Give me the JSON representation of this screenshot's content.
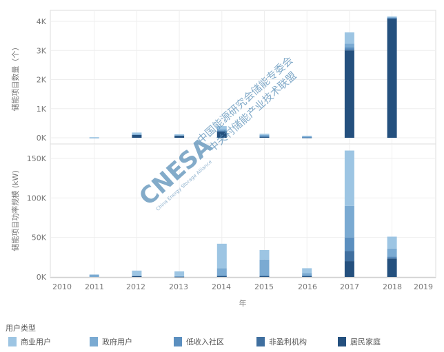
{
  "chart_data": [
    {
      "type": "bar",
      "stacked": true,
      "ylabel": "储能项目数量（个）",
      "ylim": [
        0,
        4300
      ],
      "yticks": [
        0,
        1000,
        2000,
        3000,
        4000
      ],
      "ytick_labels": [
        "0K",
        "1K",
        "2K",
        "3K",
        "4K"
      ],
      "categories": [
        "2010",
        "2011",
        "2012",
        "2013",
        "2014",
        "2015",
        "2016",
        "2017",
        "2018",
        "2019"
      ],
      "grid": true,
      "series": [
        {
          "name": "居民家庭",
          "values": [
            0,
            0,
            100,
            80,
            200,
            30,
            10,
            3000,
            4100,
            0
          ]
        },
        {
          "name": "非盈利机构",
          "values": [
            0,
            0,
            0,
            0,
            30,
            10,
            5,
            30,
            10,
            0
          ]
        },
        {
          "name": "低收入社区",
          "values": [
            0,
            0,
            0,
            0,
            20,
            20,
            10,
            80,
            10,
            0
          ]
        },
        {
          "name": "政府用户",
          "values": [
            0,
            5,
            20,
            10,
            50,
            40,
            20,
            120,
            20,
            0
          ]
        },
        {
          "name": "商业用户",
          "values": [
            0,
            15,
            60,
            30,
            100,
            40,
            25,
            390,
            30,
            0
          ]
        }
      ]
    },
    {
      "type": "bar",
      "stacked": true,
      "ylabel": "储能项目功率规模 (kW)",
      "xlabel": "年",
      "ylim": [
        0,
        160000
      ],
      "yticks": [
        0,
        50000,
        100000,
        150000
      ],
      "ytick_labels": [
        "0K",
        "50K",
        "100K",
        "150K"
      ],
      "categories": [
        "2010",
        "2011",
        "2012",
        "2013",
        "2014",
        "2015",
        "2016",
        "2017",
        "2018",
        "2019"
      ],
      "grid": true,
      "series": [
        {
          "name": "居民家庭",
          "values": [
            0,
            0,
            1000,
            500,
            1000,
            1000,
            1000,
            20000,
            23000,
            0
          ]
        },
        {
          "name": "非盈利机构",
          "values": [
            0,
            0,
            0,
            0,
            500,
            500,
            500,
            13000,
            1000,
            0
          ]
        },
        {
          "name": "低收入社区",
          "values": [
            0,
            0,
            0,
            0,
            500,
            500,
            500,
            17000,
            2000,
            0
          ]
        },
        {
          "name": "政府用户",
          "values": [
            0,
            3000,
            1000,
            500,
            9000,
            20000,
            3000,
            40000,
            10000,
            0
          ]
        },
        {
          "name": "商业用户",
          "values": [
            0,
            0,
            6000,
            6000,
            31000,
            12000,
            6000,
            70000,
            15000,
            0
          ]
        }
      ]
    }
  ],
  "legend": {
    "title": "用户类型",
    "placement": "bottom",
    "items": [
      {
        "label": "商业用户",
        "color": "#9dc5e3"
      },
      {
        "label": "政府用户",
        "color": "#7aaad2"
      },
      {
        "label": "低收入社区",
        "color": "#5b8fbf"
      },
      {
        "label": "非盈利机构",
        "color": "#3f6f9f"
      },
      {
        "label": "居民家庭",
        "color": "#24507e"
      }
    ]
  },
  "series_colors": {
    "居民家庭": "#24507e",
    "非盈利机构": "#3f6f9f",
    "低收入社区": "#5b8fbf",
    "政府用户": "#7aaad2",
    "商业用户": "#9dc5e3"
  },
  "watermark": {
    "logo": "CNESA",
    "line1": "中国能源研究会储能专委会",
    "line2": "中关村储能产业技术联盟",
    "sub": "China Energy Storage Alliance"
  }
}
